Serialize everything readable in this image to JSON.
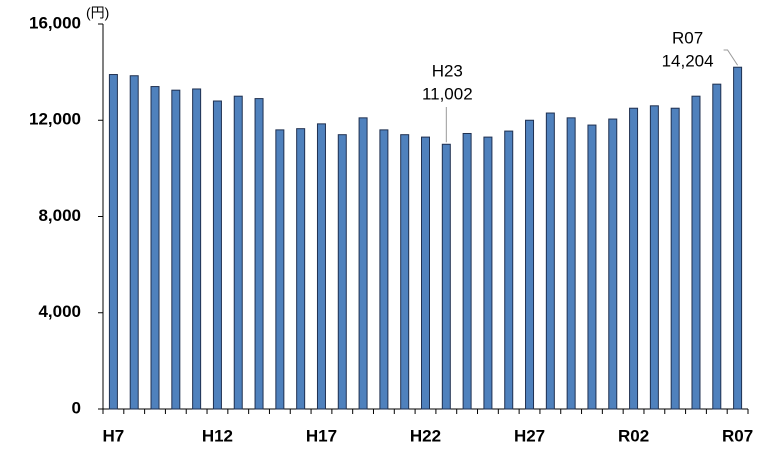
{
  "chart_data": {
    "type": "bar",
    "y_unit": "(円)",
    "categories": [
      "H7",
      null,
      null,
      null,
      null,
      "H12",
      null,
      null,
      null,
      null,
      "H17",
      null,
      null,
      null,
      null,
      "H22",
      null,
      null,
      null,
      null,
      "H27",
      null,
      null,
      null,
      null,
      "R02",
      null,
      null,
      null,
      null,
      "R07"
    ],
    "values": [
      13900,
      13850,
      13400,
      13250,
      13300,
      12800,
      13000,
      12900,
      11600,
      11650,
      11850,
      11400,
      12100,
      11600,
      11400,
      11300,
      11002,
      11450,
      11300,
      11550,
      12000,
      12300,
      12100,
      11800,
      12050,
      12500,
      12600,
      12500,
      13000,
      13500,
      14204
    ],
    "value_labels": [
      null,
      null,
      null,
      null,
      null,
      null,
      null,
      null,
      null,
      null,
      null,
      null,
      null,
      null,
      null,
      null,
      "11,002",
      null,
      null,
      null,
      null,
      null,
      null,
      null,
      null,
      null,
      null,
      null,
      null,
      null,
      "14,204"
    ],
    "annotation_categories": [
      null,
      null,
      null,
      null,
      null,
      null,
      null,
      null,
      null,
      null,
      null,
      null,
      null,
      null,
      null,
      null,
      "H23",
      null,
      null,
      null,
      null,
      null,
      null,
      null,
      null,
      null,
      null,
      null,
      null,
      null,
      "R07"
    ],
    "color": "#4f81bd",
    "ylim": [
      0,
      16000
    ],
    "yticks": [
      0,
      {
        "value": 4000,
        "label": "4,000"
      },
      {
        "value": 8000,
        "label": "8,000"
      },
      {
        "value": 12000,
        "label": "12,000"
      },
      {
        "value": 16000,
        "label": "16,000"
      }
    ],
    "grid": false
  }
}
